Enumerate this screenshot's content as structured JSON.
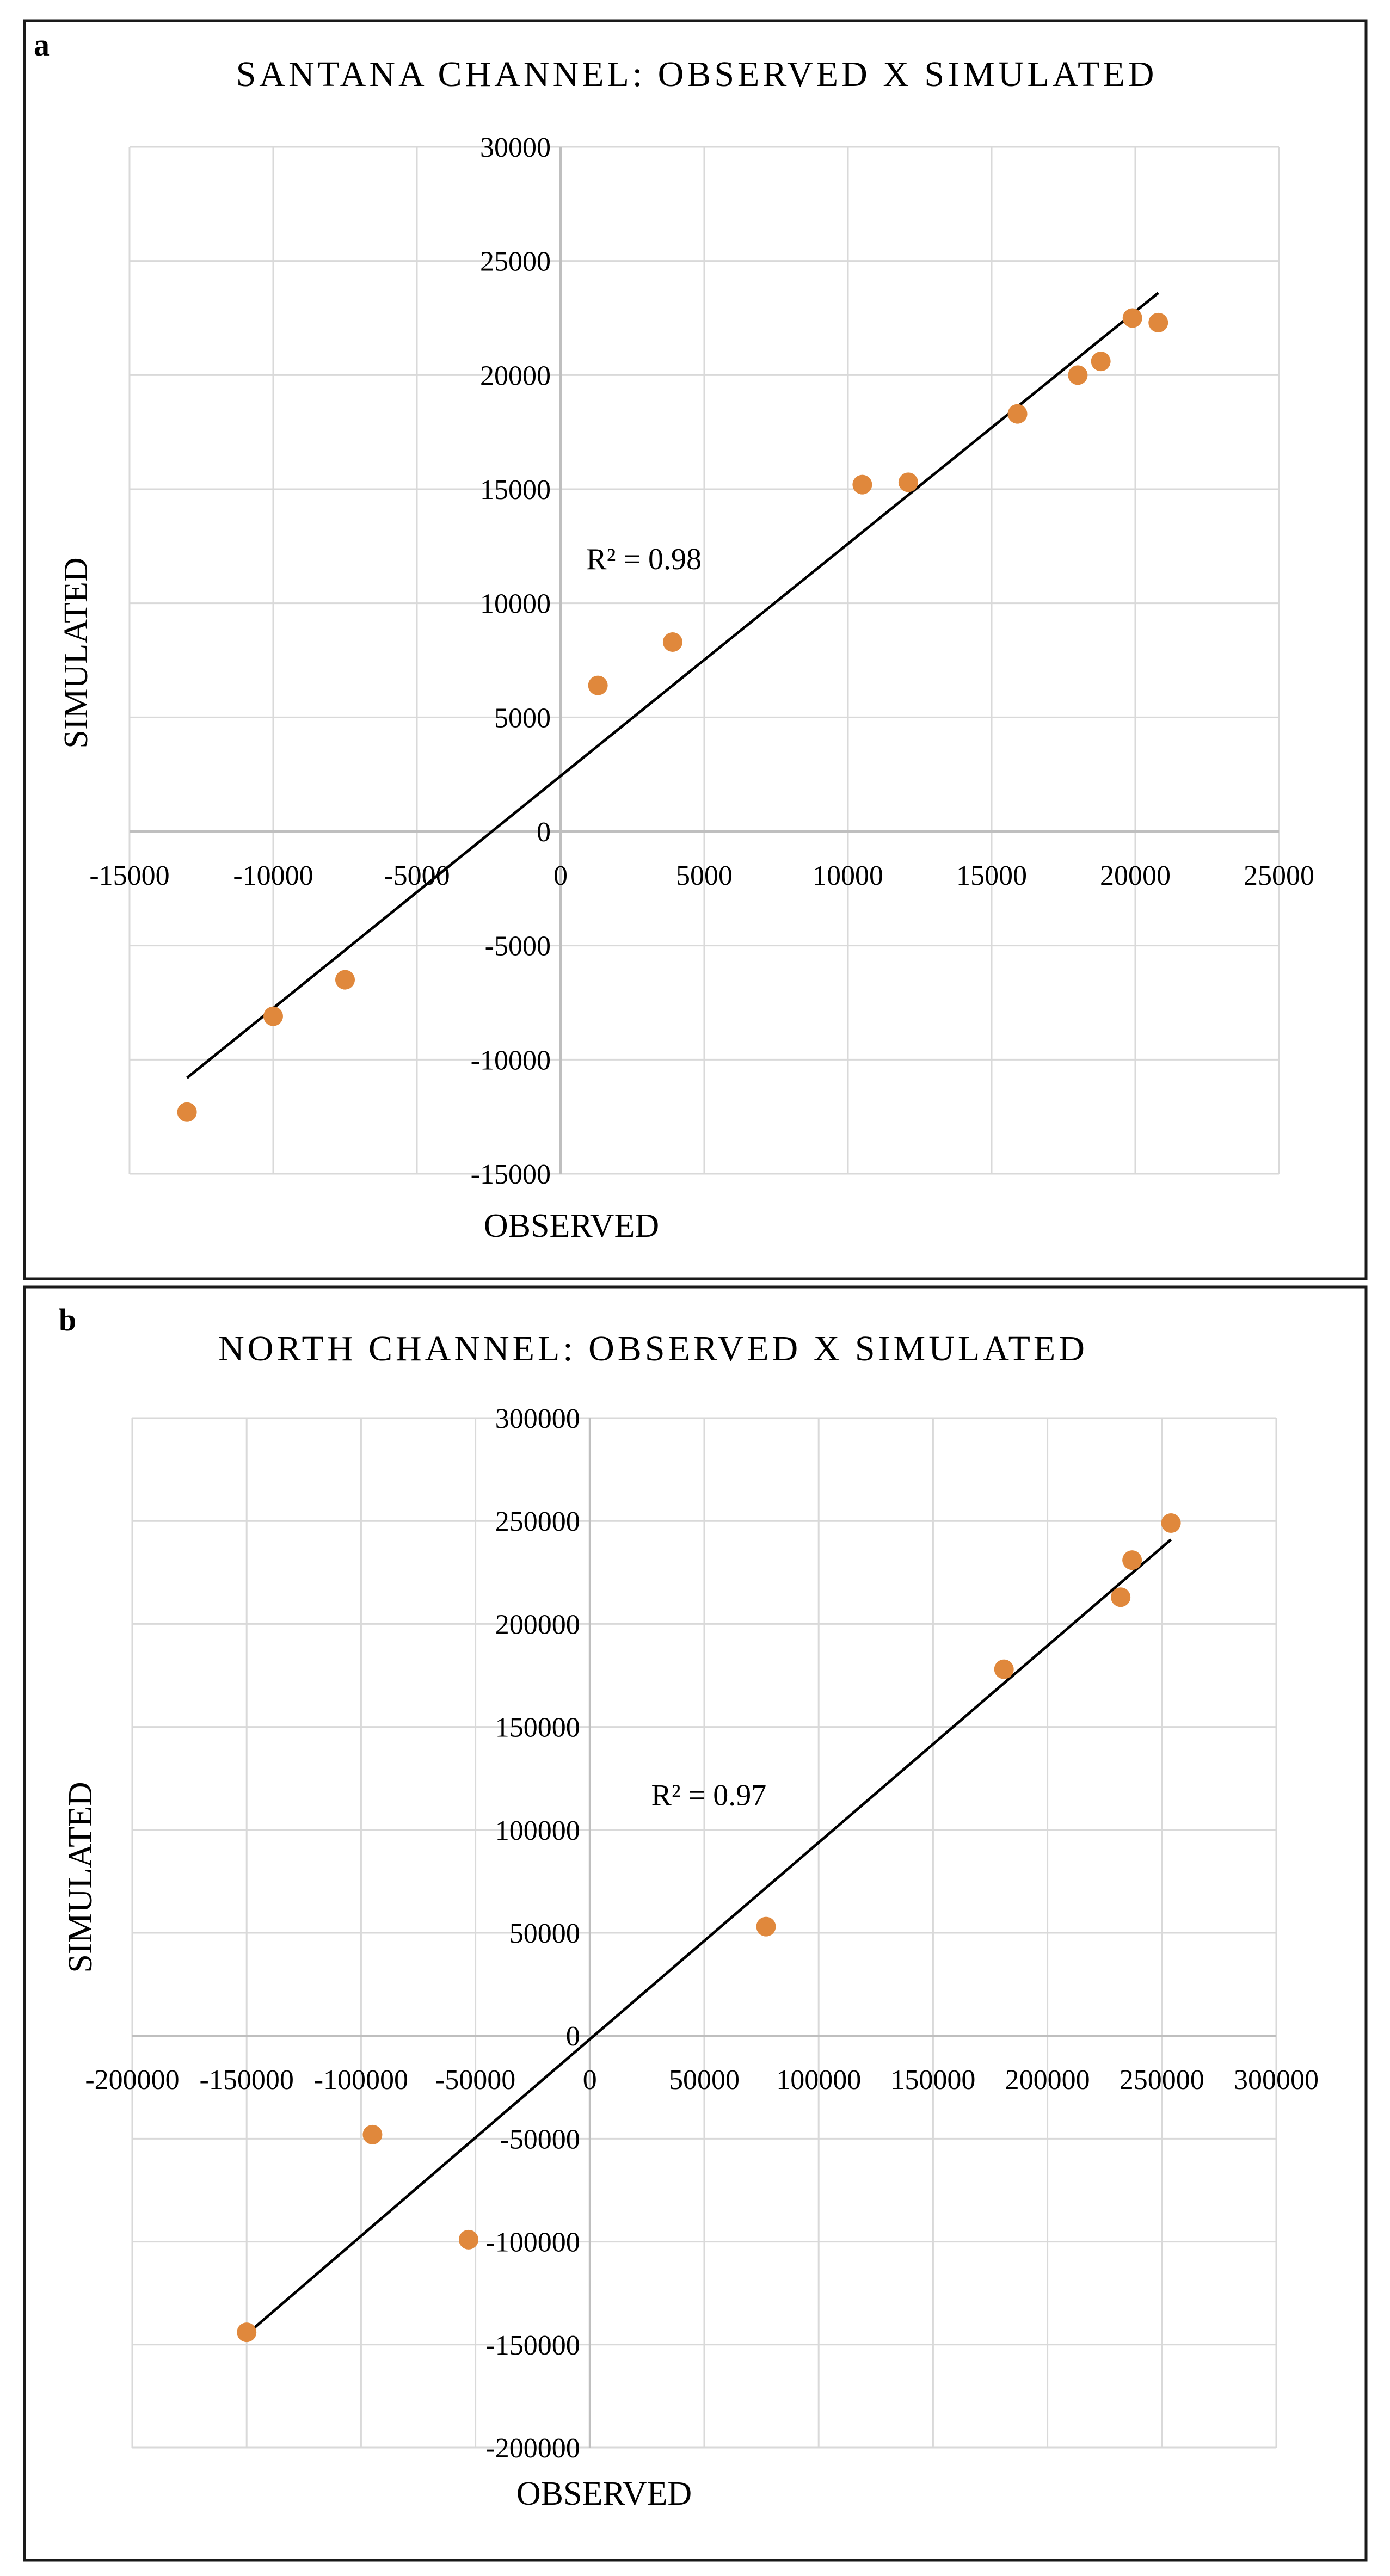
{
  "chart_data": [
    {
      "type": "scatter",
      "panel_label": "a",
      "title": "SANTANA CHANNEL: OBSERVED X SIMULATED",
      "xlabel": "OBSERVED",
      "ylabel": "SIMULATED",
      "xlim": [
        -15000,
        25000
      ],
      "ylim": [
        -15000,
        30000
      ],
      "xticks": [
        -15000,
        -10000,
        -5000,
        0,
        5000,
        10000,
        15000,
        20000,
        25000
      ],
      "yticks": [
        30000,
        25000,
        20000,
        15000,
        10000,
        5000,
        0,
        -5000,
        -10000,
        -15000
      ],
      "x_tick_labels": [
        "-15000",
        "-10000",
        "-5000",
        "0",
        "5000",
        "10000",
        "15000",
        "20000",
        "25000"
      ],
      "y_tick_labels": [
        "30000",
        "25000",
        "20000",
        "15000",
        "10000",
        "5000",
        "0",
        "-5000",
        "-10000",
        "-15000"
      ],
      "grid": true,
      "marker_color": "#E0883C",
      "points": [
        {
          "x": -13000,
          "y": -12300
        },
        {
          "x": -10000,
          "y": -8100
        },
        {
          "x": -7500,
          "y": -6500
        },
        {
          "x": 1300,
          "y": 6400
        },
        {
          "x": 3900,
          "y": 8300
        },
        {
          "x": 10500,
          "y": 15200
        },
        {
          "x": 12100,
          "y": 15300
        },
        {
          "x": 15900,
          "y": 18300
        },
        {
          "x": 18000,
          "y": 20000
        },
        {
          "x": 18800,
          "y": 20600
        },
        {
          "x": 19900,
          "y": 22500
        },
        {
          "x": 20800,
          "y": 22300
        }
      ],
      "trendline": {
        "x": [
          -13000,
          20800
        ],
        "y": [
          -10800,
          23600
        ]
      },
      "annotation": {
        "text": "R² = 0.98",
        "x": 2900,
        "y": 11500
      }
    },
    {
      "type": "scatter",
      "panel_label": "b",
      "title": "NORTH CHANNEL: OBSERVED X SIMULATED",
      "xlabel": "OBSERVED",
      "ylabel": "SIMULATED",
      "xlim": [
        -200000,
        300000
      ],
      "ylim": [
        -200000,
        300000
      ],
      "xticks": [
        -200000,
        -150000,
        -100000,
        -50000,
        0,
        50000,
        100000,
        150000,
        200000,
        250000,
        300000
      ],
      "yticks": [
        300000,
        250000,
        200000,
        150000,
        100000,
        50000,
        0,
        -50000,
        -100000,
        -150000,
        -200000
      ],
      "x_tick_labels": [
        "-200000",
        "-150000",
        "-100000",
        "-50000",
        "0",
        "50000",
        "100000",
        "150000",
        "200000",
        "250000",
        "300000"
      ],
      "y_tick_labels": [
        "300000",
        "250000",
        "200000",
        "150000",
        "100000",
        "50000",
        "0",
        "-50000",
        "-100000",
        "-150000",
        "-200000"
      ],
      "grid": true,
      "marker_color": "#E0883C",
      "points": [
        {
          "x": -150000,
          "y": -144000
        },
        {
          "x": -95000,
          "y": -48000
        },
        {
          "x": -53000,
          "y": -99000
        },
        {
          "x": 77000,
          "y": 53000
        },
        {
          "x": 181000,
          "y": 178000
        },
        {
          "x": 232000,
          "y": 213000
        },
        {
          "x": 237000,
          "y": 231000
        },
        {
          "x": 254000,
          "y": 249000
        }
      ],
      "trendline": {
        "x": [
          -150000,
          254000
        ],
        "y": [
          -145000,
          241000
        ]
      },
      "annotation": {
        "text": "R² = 0.97",
        "x": 52000,
        "y": 112000
      }
    }
  ]
}
